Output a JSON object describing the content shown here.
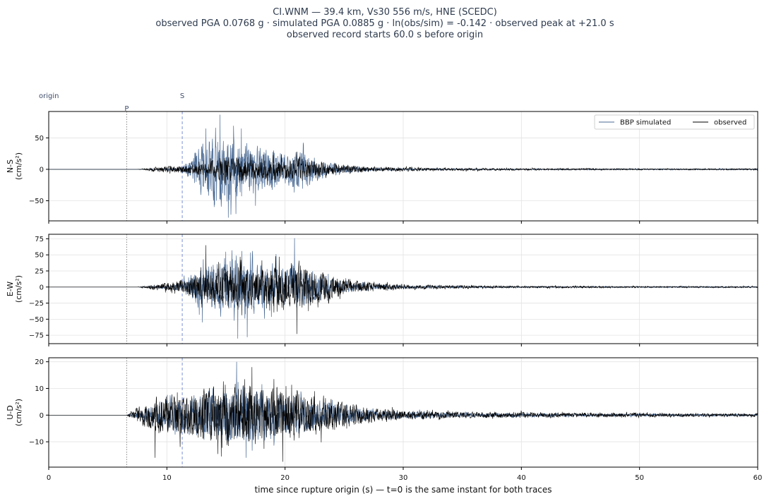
{
  "chart_data": {
    "type": "line",
    "title_lines": [
      "CI.WNM  —  39.4 km, Vs30 556 m/s, HNE (SCEDC)",
      "observed PGA 0.0768 g   ·   simulated PGA 0.0885 g   ·   ln(obs/sim) = -0.142   ·   observed peak at +21.0 s",
      "observed record starts 60.0 s before origin"
    ],
    "xlabel": "time since rupture origin (s)   —   t=0 is the same instant for both traces",
    "xlim": [
      0,
      60
    ],
    "xticks": [
      0,
      10,
      20,
      30,
      40,
      50,
      60
    ],
    "grid": true,
    "legend": {
      "placement": "top-right",
      "entries": [
        {
          "name": "BBP simulated",
          "color": "#4a6a94"
        },
        {
          "name": "observed",
          "color": "#000000"
        }
      ]
    },
    "markers": [
      {
        "label": "origin",
        "t": 0,
        "style": "none"
      },
      {
        "label": "P",
        "t": 6.6,
        "style": "dotted",
        "color": "#888888"
      },
      {
        "label": "S",
        "t": 11.3,
        "style": "dashed",
        "color": "#7a8fd6"
      }
    ],
    "panels": [
      {
        "name": "N-S",
        "ylabel": [
          "N-S",
          "(cm/s²)"
        ],
        "ylim": [
          -82,
          92
        ],
        "yticks": [
          -50,
          0,
          50
        ],
        "envelope": {
          "t": [
            0,
            7.5,
            9,
            11,
            12,
            13,
            14,
            15,
            16,
            17,
            18,
            19,
            20,
            21,
            22,
            23,
            24,
            25,
            26,
            28,
            30,
            33,
            36,
            40,
            45,
            50,
            55,
            60
          ],
          "simulated": [
            0,
            0,
            1,
            3,
            20,
            55,
            75,
            80,
            60,
            55,
            45,
            40,
            35,
            40,
            30,
            18,
            12,
            8,
            6,
            3,
            2,
            1.5,
            1,
            1,
            1,
            1,
            1,
            1
          ],
          "observed": [
            0,
            0,
            5,
            8,
            10,
            15,
            20,
            25,
            24,
            22,
            20,
            22,
            20,
            25,
            20,
            15,
            12,
            9,
            7,
            5,
            4,
            3,
            2.5,
            2,
            2,
            1.5,
            1.5,
            1.5
          ]
        },
        "peaks": {
          "simulated": [
            {
              "t": 14.5,
              "v": 87
            },
            {
              "t": 15.2,
              "v": -77
            },
            {
              "t": 13.3,
              "v": 65
            },
            {
              "t": 16.3,
              "v": 65
            },
            {
              "t": 17.5,
              "v": -58
            },
            {
              "t": 14.0,
              "v": -60
            }
          ],
          "observed": [
            {
              "t": 21.0,
              "v": 28
            },
            {
              "t": 18.5,
              "v": -25
            }
          ]
        }
      },
      {
        "name": "E-W",
        "ylabel": [
          "E-W",
          "(cm/s²)"
        ],
        "ylim": [
          -88,
          82
        ],
        "yticks": [
          -75,
          -50,
          -25,
          0,
          25,
          50,
          75
        ],
        "envelope": {
          "t": [
            0,
            7.5,
            9,
            11,
            12,
            13,
            14,
            15,
            16,
            17,
            18,
            19,
            20,
            21,
            22,
            23,
            24,
            25,
            26,
            28,
            30,
            33,
            36,
            40,
            45,
            50,
            55,
            60
          ],
          "simulated": [
            0,
            0,
            2,
            6,
            25,
            45,
            55,
            60,
            70,
            55,
            45,
            45,
            40,
            45,
            30,
            25,
            18,
            12,
            8,
            5,
            3,
            2,
            1.5,
            1,
            1,
            1,
            1,
            1
          ],
          "observed": [
            0,
            0,
            6,
            12,
            22,
            28,
            35,
            40,
            45,
            40,
            35,
            42,
            45,
            50,
            38,
            30,
            25,
            18,
            12,
            8,
            5,
            4,
            3,
            2,
            2,
            1.5,
            1.5,
            1.5
          ]
        },
        "peaks": {
          "simulated": [
            {
              "t": 16.0,
              "v": -80
            },
            {
              "t": 20.8,
              "v": 76
            },
            {
              "t": 13.0,
              "v": -55
            },
            {
              "t": 15.5,
              "v": 57
            },
            {
              "t": 16.8,
              "v": -78
            }
          ],
          "observed": [
            {
              "t": 21.0,
              "v": -73
            },
            {
              "t": 13.3,
              "v": 65
            },
            {
              "t": 19.5,
              "v": 47
            }
          ]
        }
      },
      {
        "name": "U-D",
        "ylabel": [
          "U-D",
          "(cm/s²)"
        ],
        "ylim": [
          -19.5,
          21.5
        ],
        "yticks": [
          -10,
          0,
          10,
          20
        ],
        "envelope": {
          "t": [
            0,
            6.6,
            7,
            8,
            9,
            10,
            11,
            12,
            13,
            14,
            15,
            16,
            17,
            18,
            19,
            20,
            21,
            22,
            23,
            24,
            25,
            26,
            27,
            28,
            30,
            33,
            36,
            40,
            45,
            50,
            55,
            60
          ],
          "simulated": [
            0,
            0,
            1,
            3,
            5,
            7,
            8,
            9,
            10,
            11,
            12,
            14,
            13,
            12,
            11,
            10,
            9,
            8,
            7,
            6,
            5,
            4,
            3,
            2.5,
            2,
            1.5,
            1,
            1,
            0.7,
            0.6,
            0.5,
            0.5
          ],
          "observed": [
            0,
            0,
            2,
            5,
            8,
            10,
            10,
            11,
            12,
            13,
            14,
            15,
            15,
            14,
            13,
            12,
            12,
            10,
            9,
            8,
            6,
            5,
            4,
            3,
            2.5,
            2,
            1.5,
            1.5,
            1,
            1,
            0.8,
            0.8
          ]
        },
        "peaks": {
          "simulated": [
            {
              "t": 15.9,
              "v": 20
            },
            {
              "t": 16.7,
              "v": -16
            }
          ],
          "observed": [
            {
              "t": 17.2,
              "v": 18
            },
            {
              "t": 19.8,
              "v": -17.5
            },
            {
              "t": 9.0,
              "v": -16
            },
            {
              "t": 14.6,
              "v": -15.5
            }
          ]
        }
      }
    ]
  }
}
